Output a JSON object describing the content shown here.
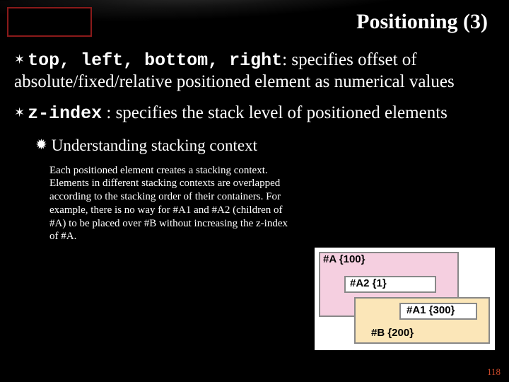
{
  "title": "Positioning (3)",
  "bullets": [
    {
      "code": "top, left, bottom, right",
      "text": ": specifies offset of absolute/fixed/relative positioned element as numerical values"
    },
    {
      "code": "z-index",
      "text": " : specifies the stack level of positioned elements"
    }
  ],
  "sub_bullet": "Understanding stacking context",
  "sub_text": "Each positioned element creates a stacking context.\nElements in different stacking contexts are overlapped according to the stacking order of their containers. For example, there is no way for #A1 and #A2 (children of #A) to be placed over #B without increasing the z-index of #A.",
  "diagram": {
    "box_a": {
      "label": "#A {100}",
      "bg": "#f5cfe0"
    },
    "box_a1": {
      "label": "#A2 {1}",
      "bg": "#ffffff"
    },
    "box_a2": {
      "label": "#A1 {300}",
      "bg": "#ffffff"
    },
    "box_b": {
      "label": "#B {200}",
      "bg": "#fbe6b8"
    },
    "border_color": "#888888"
  },
  "page_number": "118",
  "colors": {
    "background": "#000000",
    "title": "#ffffff",
    "corner_border": "#8a1a1a",
    "pagenum": "#c94a2a"
  }
}
